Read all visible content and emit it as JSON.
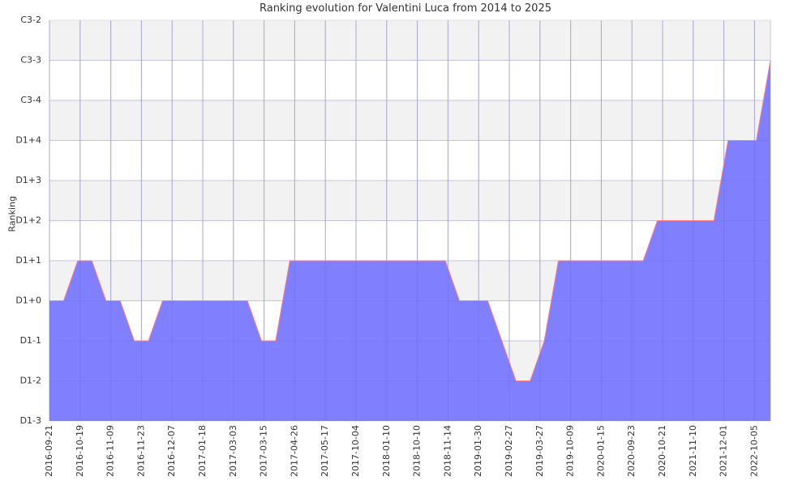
{
  "chart_data": {
    "type": "area",
    "title": "Ranking evolution for Valentini Luca from 2014 to 2025",
    "xlabel": "",
    "ylabel": "Ranking",
    "y_categories": [
      "D1-3",
      "D1-2",
      "D1-1",
      "D1+0",
      "D1+1",
      "D1+2",
      "D1+3",
      "D1+4",
      "C3-4",
      "C3-3",
      "C3-2"
    ],
    "x_ticks": [
      "2016-09-21",
      "2016-10-19",
      "2016-11-09",
      "2016-11-23",
      "2016-12-07",
      "2017-01-18",
      "2017-03-03",
      "2017-03-15",
      "2017-04-26",
      "2017-05-17",
      "2017-10-04",
      "2018-01-10",
      "2018-10-10",
      "2018-11-14",
      "2019-01-30",
      "2019-02-27",
      "2019-03-27",
      "2019-10-09",
      "2020-01-15",
      "2020-09-23",
      "2020-10-21",
      "2021-11-10",
      "2021-12-01",
      "2022-10-05"
    ],
    "series": [
      {
        "values": [
          "D1+0",
          "D1+0",
          "D1+1",
          "D1+1",
          "D1+0",
          "D1+0",
          "D1-1",
          "D1-1",
          "D1+0",
          "D1+0",
          "D1+0",
          "D1+0",
          "D1+0",
          "D1+0",
          "D1+0",
          "D1-1",
          "D1-1",
          "D1+1",
          "D1+1",
          "D1+1",
          "D1+1",
          "D1+1",
          "D1+1",
          "D1+1",
          "D1+1",
          "D1+1",
          "D1+1",
          "D1+1",
          "D1+1",
          "D1+0",
          "D1+0",
          "D1+0",
          "D1-1",
          "D1-2",
          "D1-2",
          "D1-1",
          "D1+1",
          "D1+1",
          "D1+1",
          "D1+1",
          "D1+1",
          "D1+1",
          "D1+1",
          "D1+2",
          "D1+2",
          "D1+2",
          "D1+2",
          "D1+2",
          "D1+4",
          "D1+4",
          "D1+4",
          "C3-3"
        ]
      }
    ],
    "grid": true,
    "legend": "none",
    "colors": {
      "fill": "#8080ff",
      "line": "#ff7f7f",
      "grid": "#cccccc",
      "band": "#f2f2f2",
      "text": "#333333"
    }
  }
}
